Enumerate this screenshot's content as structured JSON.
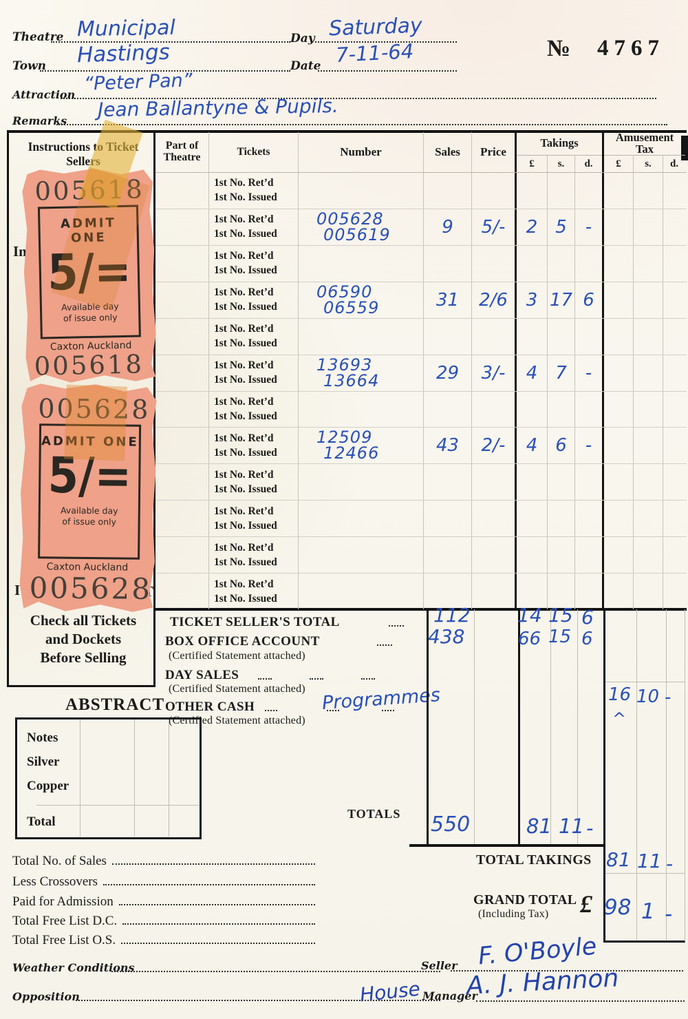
{
  "header": {
    "theatre_label": "Theatre",
    "theatre_value": "Municipal",
    "town_label": "Town",
    "town_value": "Hastings",
    "attraction_label": "Attraction",
    "attraction_value": "“Peter Pan”",
    "remarks_label": "Remarks",
    "remarks_value": "Jean Ballantyne & Pupils.",
    "day_label": "Day",
    "day_value": "Saturday",
    "date_label": "Date",
    "date_value": "7-11-64",
    "serial_label": "№",
    "serial_value": "4767"
  },
  "instructions": {
    "title": "Instructions to Ticket Sellers",
    "partial_text_1": "In",
    "partial_text_2": "I",
    "partial_text_3": "T",
    "check_lines": [
      "Check all Tickets",
      "and Dockets",
      "Before Selling"
    ]
  },
  "tickets": [
    {
      "serial_top": "005618",
      "admit": "ADMIT ONE",
      "price": "5/=",
      "validity_line1": "Available day",
      "validity_line2": "of issue only",
      "printer": "Caxton Auckland",
      "serial_bottom": "005618"
    },
    {
      "serial_top": "005628",
      "admit": "ADMIT ONE",
      "price": "5/=",
      "validity_line1": "Available day",
      "validity_line2": "of issue only",
      "printer": "Caxton Auckland",
      "serial_bottom": "005628"
    }
  ],
  "table": {
    "col_part": "Part of Theatre",
    "col_tickets": "Tickets",
    "col_number": "Number",
    "col_sales": "Sales",
    "col_price": "Price",
    "col_takings": "Takings",
    "col_tax": "Amusement Tax",
    "cur_pound": "£",
    "cur_s": "s.",
    "cur_d": "d.",
    "retd_label": "1st No. Ret’d",
    "issued_label": "1st No. Issued",
    "rows": [
      {
        "retd": "",
        "issued": "",
        "sales": "",
        "price": "",
        "tl": "",
        "ts": "",
        "td": ""
      },
      {
        "retd": "005628",
        "issued": "005619",
        "sales": "9",
        "price": "5/-",
        "tl": "2",
        "ts": "5",
        "td": "-"
      },
      {
        "retd": "",
        "issued": "",
        "sales": "",
        "price": "",
        "tl": "",
        "ts": "",
        "td": ""
      },
      {
        "retd": "06590",
        "issued": "06559",
        "sales": "31",
        "price": "2/6",
        "tl": "3",
        "ts": "17",
        "td": "6"
      },
      {
        "retd": "",
        "issued": "",
        "sales": "",
        "price": "",
        "tl": "",
        "ts": "",
        "td": ""
      },
      {
        "retd": "13693",
        "issued": "13664",
        "sales": "29",
        "price": "3/-",
        "tl": "4",
        "ts": "7",
        "td": "-"
      },
      {
        "retd": "",
        "issued": "",
        "sales": "",
        "price": "",
        "tl": "",
        "ts": "",
        "td": ""
      },
      {
        "retd": "12509",
        "issued": "12466",
        "sales": "43",
        "price": "2/-",
        "tl": "4",
        "ts": "6",
        "td": "-"
      },
      {
        "retd": "",
        "issued": "",
        "sales": "",
        "price": "",
        "tl": "",
        "ts": "",
        "td": ""
      },
      {
        "retd": "",
        "issued": "",
        "sales": "",
        "price": "",
        "tl": "",
        "ts": "",
        "td": ""
      },
      {
        "retd": "",
        "issued": "",
        "sales": "",
        "price": "",
        "tl": "",
        "ts": "",
        "td": ""
      },
      {
        "retd": "",
        "issued": "",
        "sales": "",
        "price": "",
        "tl": "",
        "ts": "",
        "td": ""
      }
    ]
  },
  "totals": {
    "ticket_sellers_label": "TICKET SELLER'S TOTAL",
    "ticket_sellers_sales": "112",
    "ticket_sellers_tl": "14",
    "ticket_sellers_ts": "15",
    "ticket_sellers_td": "6",
    "box_office_label": "BOX OFFICE ACCOUNT",
    "box_office_sales": "438",
    "box_office_tl": "66",
    "box_office_ts": "15",
    "box_office_td": "6",
    "certified_note": "(Certified Statement attached)",
    "day_sales_label": "DAY SALES",
    "other_cash_label": "OTHER CASH",
    "other_cash_handwritten": "Programmes",
    "other_cash_caret": "^",
    "other_cash_tax_l": "16",
    "other_cash_tax_s": "10",
    "other_cash_tax_d": "-",
    "totals_label": "TOTALS",
    "totals_sales": "550",
    "totals_tl": "81",
    "totals_ts": "11",
    "totals_td": "-",
    "total_takings_label": "TOTAL TAKINGS",
    "total_takings_l": "81",
    "total_takings_s": "11",
    "total_takings_d": "-",
    "grand_total_label": "GRAND TOTAL",
    "grand_total_sub": "(Including Tax)",
    "grand_total_currency": "£",
    "grand_total_l": "98",
    "grand_total_s": "1",
    "grand_total_d": "-"
  },
  "abstract": {
    "title": "ABSTRACT",
    "rows": [
      "Notes",
      "Silver",
      "Copper",
      "Total"
    ]
  },
  "summary": {
    "items": [
      "Total No. of Sales",
      "Less Crossovers",
      "Paid for Admission",
      "Total Free List D.C.",
      "Total Free List O.S."
    ]
  },
  "footer": {
    "weather_label": "Weather Conditions",
    "opposition_label": "Opposition",
    "seller_label": "Seller",
    "manager_label": "Manager",
    "manager_handwritten_prefix": "House",
    "seller_signature": "F. O'Boyle",
    "manager_signature": "A. J. Hannon"
  }
}
